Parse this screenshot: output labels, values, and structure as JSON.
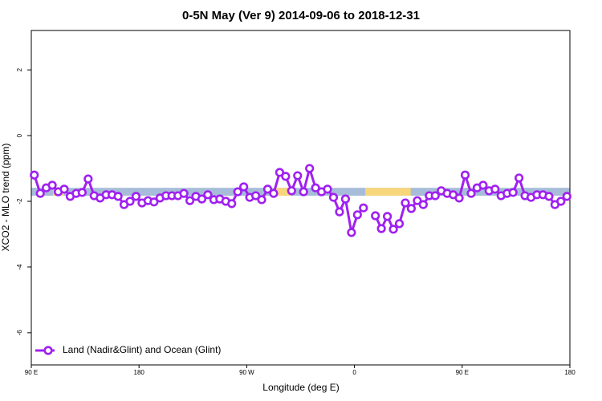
{
  "chart_data": {
    "type": "line",
    "title": "0-5N May (Ver 9)   2014-09-06 to 2018-12-31",
    "x_label": "Longitude (deg E)",
    "y_label": "XCO2 - MLO trend (ppm)",
    "xlim": [
      90,
      540
    ],
    "ylim": [
      -6.98,
      3.2
    ],
    "xticks": [
      {
        "value": 90,
        "label": "90 E"
      },
      180,
      {
        "value": 270,
        "label": "90 W"
      },
      {
        "value": 360,
        "label": "0"
      },
      {
        "value": 450,
        "label": "90 E"
      },
      {
        "value": 540,
        "label": "180"
      }
    ],
    "yticks": [
      -6,
      -4,
      -2,
      0,
      2
    ],
    "legend": "bottom-left",
    "band": {
      "range": [
        -1.59,
        -1.83
      ],
      "color": "#a6bcd8",
      "segments": [
        {
          "x": [
            108,
            117.5
          ],
          "color": "#f7d67c"
        },
        {
          "x": [
            292,
            307
          ],
          "color": "#f7d67c"
        },
        {
          "x": [
            369,
            407
          ],
          "color": "#f7d67c"
        }
      ]
    },
    "x": [
      92.5,
      97.5,
      102.5,
      107.5,
      112.5,
      117.5,
      122.5,
      127.5,
      132.5,
      137.5,
      142.5,
      147.5,
      152.5,
      157.5,
      162.5,
      167.5,
      172.5,
      177.5,
      182.5,
      187.5,
      192.5,
      197.5,
      202.5,
      207.5,
      212.5,
      217.5,
      222.5,
      227.5,
      232.5,
      237.5,
      242.5,
      247.5,
      252.5,
      257.5,
      262.5,
      267.5,
      272.5,
      277.5,
      282.5,
      287.5,
      292.5,
      297.5,
      302.5,
      307.5,
      312.5,
      317.5,
      322.5,
      327.5,
      332.5,
      337.5,
      342.5,
      347.5,
      352.5,
      357.5,
      362.5,
      367.5,
      372.5,
      377.5,
      382.5,
      387.5,
      392.5,
      397.5,
      402.5,
      407.5,
      412.5,
      417.5,
      422.5,
      427.5,
      432.5,
      437.5,
      442.5,
      447.5,
      452.5,
      457.5,
      462.5,
      467.5,
      472.5,
      477.5,
      482.5,
      487.5,
      492.5,
      497.5,
      502.5,
      507.5,
      512.5,
      517.5,
      522.5,
      527.5,
      532.5,
      537.5
    ],
    "series": [
      {
        "name": "Land (Nadir&Glint) and Ocean (Glint)",
        "color": "#a020f0",
        "values": [
          -1.2,
          -1.76,
          -1.59,
          -1.51,
          -1.71,
          -1.63,
          -1.85,
          -1.76,
          -1.73,
          -1.32,
          -1.83,
          -1.9,
          -1.8,
          -1.8,
          -1.85,
          -2.1,
          -2.0,
          -1.85,
          -2.05,
          -1.98,
          -2.02,
          -1.9,
          -1.83,
          -1.83,
          -1.83,
          -1.76,
          -1.98,
          -1.85,
          -1.93,
          -1.8,
          -1.95,
          -1.93,
          -2.0,
          -2.07,
          -1.71,
          -1.56,
          -1.88,
          -1.83,
          -1.95,
          -1.63,
          -1.76,
          -1.12,
          -1.24,
          -1.68,
          -1.22,
          -1.71,
          -1.0,
          -1.59,
          -1.71,
          -1.63,
          -1.88,
          -2.32,
          -1.93,
          -2.95,
          -2.41,
          -2.2,
          null,
          -2.44,
          -2.83,
          -2.46,
          -2.85,
          -2.68,
          -2.05,
          -2.22,
          -1.98,
          -2.1,
          -1.83,
          -1.83,
          -1.68,
          -1.76,
          -1.8,
          -1.9,
          -1.2,
          -1.76,
          -1.59,
          -1.51,
          -1.68,
          -1.63,
          -1.83,
          -1.76,
          -1.73,
          -1.29,
          -1.83,
          -1.88,
          -1.8,
          -1.8,
          -1.85,
          -2.1,
          -2.0,
          -1.85
        ]
      }
    ]
  }
}
